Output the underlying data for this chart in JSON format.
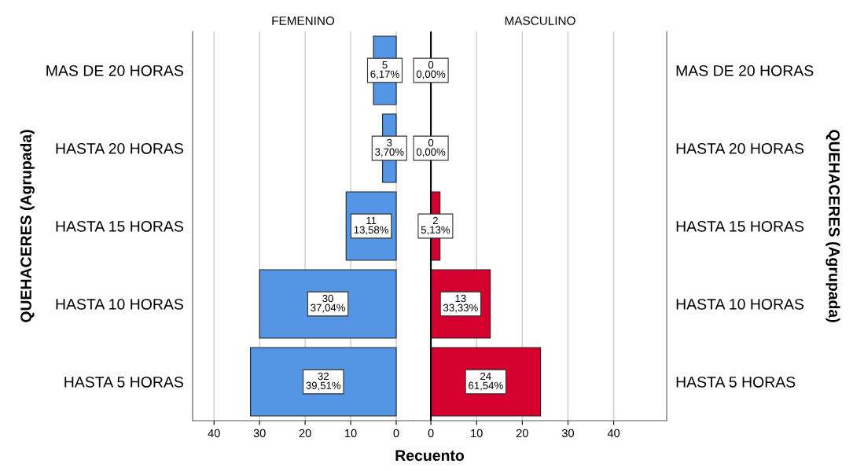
{
  "chart_data": [
    {
      "type": "bar",
      "orientation": "horizontal",
      "title": "FEMENINO",
      "ylabel": "QUEHACERES (Agrupada)",
      "xlabel": "Recuento",
      "categories": [
        "MAS DE 20 HORAS",
        "HASTA 20 HORAS",
        "HASTA 15 HORAS",
        "HASTA 10 HORAS",
        "HASTA 5 HORAS"
      ],
      "series": [
        {
          "color": "#5595e5",
          "values": [
            5,
            3,
            11,
            30,
            32
          ],
          "value_labels": [
            "5\n6,17%",
            "3\n3,70%",
            "11\n13,58%",
            "30\n37,04%",
            "32\n39,51%"
          ]
        }
      ],
      "xlim": [
        44.7,
        -3.8
      ],
      "xticks": [
        40,
        30,
        20,
        10,
        0
      ],
      "grid": "x",
      "legend": false
    },
    {
      "type": "bar",
      "orientation": "horizontal",
      "title": "MASCULINO",
      "y2label": "QUEHACERES (Agrupada)",
      "categories": [
        "MAS DE 20 HORAS",
        "HASTA 20 HORAS",
        "HASTA 15 HORAS",
        "HASTA 10 HORAS",
        "HASTA 5 HORAS"
      ],
      "series": [
        {
          "color": "#d6002e",
          "values": [
            0,
            0,
            2,
            13,
            24
          ],
          "value_labels": [
            "0\n0,00%",
            "0\n0,00%",
            "2\n5,13%",
            "13\n33,33%",
            "24\n61,54%"
          ]
        }
      ],
      "xlim": [
        -3.8,
        51.6
      ],
      "xticks": [
        0,
        10,
        20,
        30,
        40
      ],
      "grid": "x",
      "legend": false,
      "ref_lines": [
        {
          "axis": "x",
          "value": 0,
          "color": "#000000"
        }
      ]
    }
  ]
}
